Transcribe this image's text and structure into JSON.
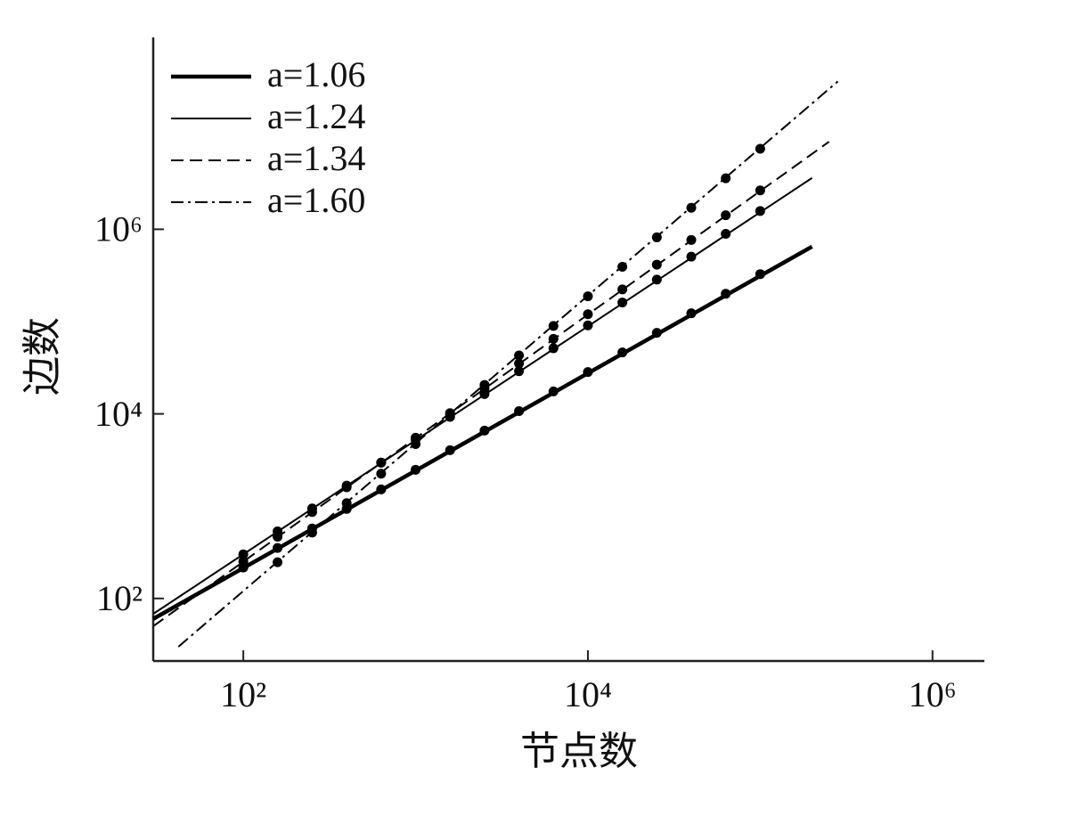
{
  "chart_data": {
    "type": "line",
    "x_label": "节点数",
    "y_label": "边数",
    "xscale": "log",
    "yscale": "log",
    "xlim": [
      30,
      2000000
    ],
    "ylim": [
      21,
      120000000
    ],
    "xticks": [
      {
        "value": 100,
        "label": "10²"
      },
      {
        "value": 10000,
        "label": "10⁴"
      },
      {
        "value": 1000000,
        "label": "10⁶"
      }
    ],
    "yticks": [
      {
        "value": 100,
        "label": "10²"
      },
      {
        "value": 10000,
        "label": "10⁴"
      },
      {
        "value": 1000000,
        "label": "10⁶"
      }
    ],
    "legend": "upper left",
    "x": [
      100,
      158,
      251,
      398,
      631,
      1000,
      1585,
      2512,
      3981,
      6310,
      10000,
      15849,
      25119,
      39811,
      63096,
      100000
    ],
    "series": [
      {
        "name": "a=1.06",
        "color": "#000000",
        "linestyle": "solid-thick",
        "line_x": [
          30,
          200000
        ],
        "line_values": [
          60,
          650000
        ],
        "values": [
          216,
          352,
          573,
          933,
          1520,
          2480,
          4040,
          6580,
          10700,
          17500,
          28400,
          46300,
          75500,
          123000,
          200000,
          327000
        ]
      },
      {
        "name": "a=1.24",
        "color": "#000000",
        "linestyle": "solid",
        "line_x": [
          30,
          200000
        ],
        "line_values": [
          68,
          3600000
        ],
        "values": [
          301,
          533,
          944,
          1670,
          2960,
          5240,
          9270,
          16400,
          29000,
          51400,
          91000,
          161000,
          285000,
          505000,
          893000,
          1580000
        ]
      },
      {
        "name": "a=1.34",
        "color": "#000000",
        "linestyle": "dashed",
        "line_x": [
          30,
          251000
        ],
        "line_values": [
          50,
          8900000
        ],
        "values": [
          252,
          467,
          865,
          1600,
          2970,
          5510,
          10200,
          18900,
          35100,
          65000,
          120000,
          223000,
          414000,
          767000,
          1420000,
          2640000
        ]
      },
      {
        "name": "a=1.60",
        "color": "#000000",
        "linestyle": "dashdot",
        "line_x": [
          42,
          282000
        ],
        "line_values": [
          30,
          40000000
        ],
        "values": [
          null,
          247,
          517,
          1080,
          2250,
          4710,
          9840,
          20600,
          43000,
          89700,
          188000,
          392000,
          818000,
          1710000,
          3570000,
          7460000
        ]
      }
    ]
  }
}
